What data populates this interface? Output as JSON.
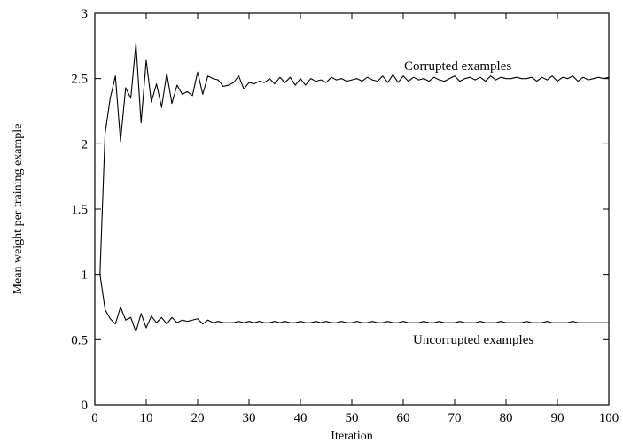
{
  "chart_data": {
    "type": "line",
    "title": "",
    "xlabel": "Iteration",
    "ylabel": "Mean weight per training example",
    "xlim": [
      0,
      100
    ],
    "ylim": [
      0,
      3
    ],
    "xticks": [
      0,
      10,
      20,
      30,
      40,
      50,
      60,
      70,
      80,
      90,
      100
    ],
    "yticks": [
      0,
      0.5,
      1,
      1.5,
      2,
      2.5,
      3
    ],
    "ytick_labels": [
      "0",
      "0.5",
      "1",
      "1.5",
      "2",
      "2.5",
      "3"
    ],
    "xtick_labels": [
      "0",
      "10",
      "20",
      "30",
      "40",
      "50",
      "60",
      "70",
      "80",
      "90",
      "100"
    ],
    "grid": false,
    "legend": "none",
    "x": [
      1,
      2,
      3,
      4,
      5,
      6,
      7,
      8,
      9,
      10,
      11,
      12,
      13,
      14,
      15,
      16,
      17,
      18,
      19,
      20,
      21,
      22,
      23,
      24,
      25,
      26,
      27,
      28,
      29,
      30,
      31,
      32,
      33,
      34,
      35,
      36,
      37,
      38,
      39,
      40,
      41,
      42,
      43,
      44,
      45,
      46,
      47,
      48,
      49,
      50,
      51,
      52,
      53,
      54,
      55,
      56,
      57,
      58,
      59,
      60,
      61,
      62,
      63,
      64,
      65,
      66,
      67,
      68,
      69,
      70,
      71,
      72,
      73,
      74,
      75,
      76,
      77,
      78,
      79,
      80,
      81,
      82,
      83,
      84,
      85,
      86,
      87,
      88,
      89,
      90,
      91,
      92,
      93,
      94,
      95,
      96,
      97,
      98,
      99,
      100
    ],
    "series": [
      {
        "values": [
          1.0,
          2.08,
          2.35,
          2.52,
          2.02,
          2.43,
          2.35,
          2.77,
          2.16,
          2.64,
          2.32,
          2.46,
          2.28,
          2.54,
          2.31,
          2.45,
          2.38,
          2.4,
          2.37,
          2.55,
          2.38,
          2.52,
          2.5,
          2.49,
          2.44,
          2.45,
          2.47,
          2.52,
          2.42,
          2.47,
          2.46,
          2.48,
          2.47,
          2.5,
          2.46,
          2.51,
          2.47,
          2.51,
          2.45,
          2.5,
          2.45,
          2.5,
          2.48,
          2.49,
          2.47,
          2.51,
          2.49,
          2.5,
          2.48,
          2.49,
          2.5,
          2.48,
          2.51,
          2.49,
          2.48,
          2.52,
          2.47,
          2.53,
          2.47,
          2.52,
          2.48,
          2.51,
          2.49,
          2.5,
          2.48,
          2.51,
          2.49,
          2.48,
          2.5,
          2.52,
          2.48,
          2.5,
          2.51,
          2.49,
          2.51,
          2.48,
          2.52,
          2.49,
          2.51,
          2.5,
          2.5,
          2.51,
          2.5,
          2.5,
          2.51,
          2.48,
          2.51,
          2.49,
          2.52,
          2.48,
          2.51,
          2.5,
          2.52,
          2.48,
          2.51,
          2.49,
          2.5,
          2.51,
          2.5,
          2.51
        ]
      },
      {
        "values": [
          1.0,
          0.73,
          0.66,
          0.62,
          0.75,
          0.65,
          0.67,
          0.56,
          0.7,
          0.59,
          0.68,
          0.63,
          0.67,
          0.62,
          0.67,
          0.63,
          0.65,
          0.64,
          0.65,
          0.66,
          0.62,
          0.65,
          0.63,
          0.64,
          0.63,
          0.63,
          0.63,
          0.64,
          0.63,
          0.64,
          0.63,
          0.64,
          0.63,
          0.63,
          0.64,
          0.63,
          0.64,
          0.63,
          0.63,
          0.64,
          0.63,
          0.63,
          0.64,
          0.63,
          0.64,
          0.63,
          0.63,
          0.64,
          0.63,
          0.63,
          0.64,
          0.63,
          0.63,
          0.64,
          0.63,
          0.63,
          0.64,
          0.63,
          0.63,
          0.64,
          0.63,
          0.63,
          0.63,
          0.64,
          0.63,
          0.63,
          0.64,
          0.63,
          0.63,
          0.63,
          0.64,
          0.63,
          0.63,
          0.63,
          0.64,
          0.63,
          0.63,
          0.63,
          0.64,
          0.63,
          0.63,
          0.63,
          0.63,
          0.64,
          0.63,
          0.63,
          0.63,
          0.64,
          0.63,
          0.63,
          0.63,
          0.63,
          0.64,
          0.63,
          0.63,
          0.63,
          0.63,
          0.63,
          0.63,
          0.63
        ]
      }
    ],
    "annotations": {
      "corrupted": "Corrupted examples",
      "uncorrupted": "Uncorrupted examples"
    }
  }
}
